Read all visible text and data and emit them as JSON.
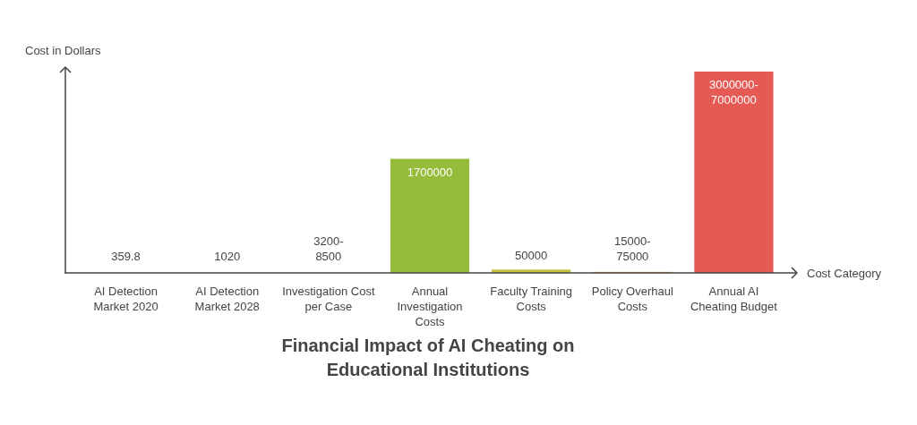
{
  "chart_data": {
    "type": "bar",
    "title": "Financial Impact of AI Cheating on Educational Institutions",
    "xlabel": "Cost Category",
    "ylabel": "Cost in Dollars",
    "categories": [
      "AI Detection Market 2020",
      "AI Detection Market 2028",
      "Investigation Cost per Case",
      "Annual Investigation Costs",
      "Faculty Training Costs",
      "Policy Overhaul Costs",
      "Annual AI Cheating Budget"
    ],
    "values": [
      359.8,
      1020,
      3200,
      1700000,
      50000,
      15000,
      3000000
    ],
    "colors": [
      null,
      null,
      null,
      "#95bd3b",
      "#c3c53c",
      "#e8a33c",
      "#e55a55"
    ],
    "value_labels": [
      "359.8",
      "1020",
      "3200-8500",
      "1700000",
      "50000",
      "15000-75000",
      "3000000-7000000"
    ]
  }
}
